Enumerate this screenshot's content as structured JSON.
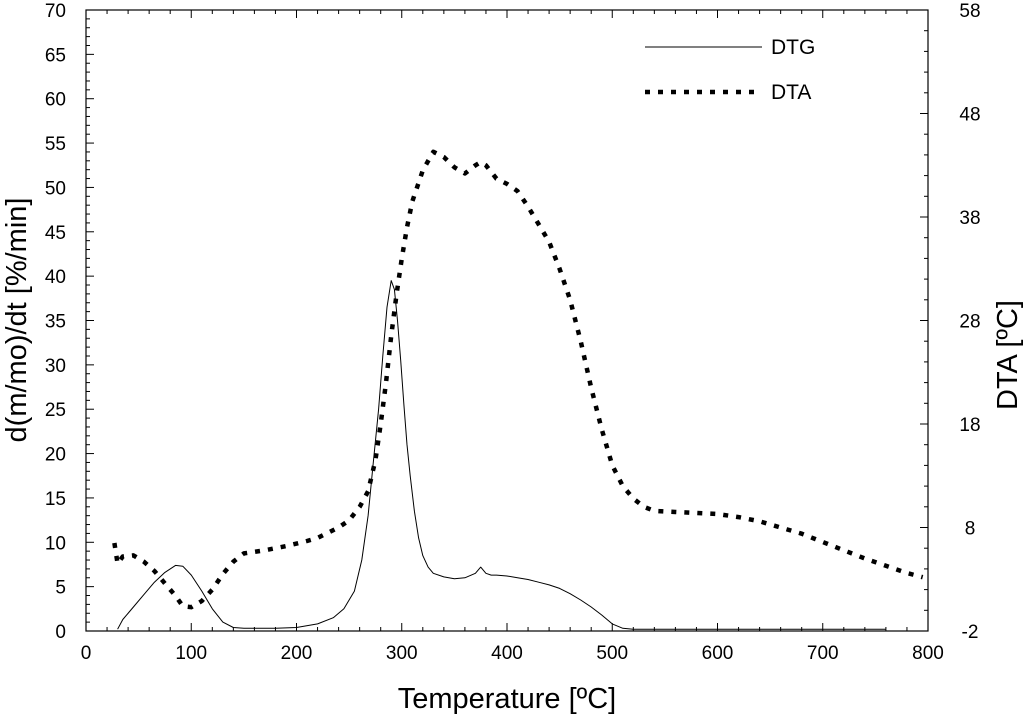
{
  "chart_data": {
    "type": "line",
    "xlabel": "Temperature [ºC]",
    "ylabel": "d(m/mo)/dt [%/min]",
    "y2label": "DTA [ºC]",
    "xlim": [
      0,
      800
    ],
    "ylim": [
      0,
      70
    ],
    "y2lim": [
      -2,
      58
    ],
    "x_ticks": [
      0,
      100,
      200,
      300,
      400,
      500,
      600,
      700,
      800
    ],
    "y_ticks": [
      0,
      5,
      10,
      15,
      20,
      25,
      30,
      35,
      40,
      45,
      50,
      55,
      60,
      65,
      70
    ],
    "y2_ticks": [
      -2,
      8,
      18,
      28,
      38,
      48,
      58
    ],
    "grid": false,
    "legend": "top-right",
    "series": [
      {
        "name": "DTG",
        "axis": "left",
        "style": "solid",
        "color": "#000000",
        "x": [
          30,
          35,
          45,
          55,
          65,
          75,
          85,
          92,
          100,
          110,
          120,
          130,
          140,
          150,
          160,
          180,
          200,
          220,
          235,
          245,
          255,
          262,
          268,
          273,
          278,
          282,
          286,
          290,
          293,
          296,
          299,
          302,
          305,
          308,
          312,
          316,
          320,
          325,
          330,
          340,
          350,
          360,
          370,
          375,
          380,
          385,
          390,
          400,
          410,
          420,
          430,
          440,
          450,
          460,
          470,
          480,
          490,
          500,
          510,
          520,
          540,
          560,
          600,
          650,
          700,
          750,
          760
        ],
        "y": [
          0.2,
          1.3,
          2.7,
          4.1,
          5.5,
          6.6,
          7.4,
          7.3,
          6.3,
          4.5,
          2.5,
          1.0,
          0.4,
          0.3,
          0.3,
          0.3,
          0.4,
          0.8,
          1.5,
          2.5,
          4.5,
          8.0,
          13.0,
          19.0,
          25.0,
          31.0,
          36.5,
          39.5,
          38.5,
          35.0,
          30.5,
          25.5,
          21.0,
          17.5,
          13.5,
          10.5,
          8.5,
          7.2,
          6.5,
          6.1,
          5.9,
          6.0,
          6.5,
          7.2,
          6.5,
          6.3,
          6.3,
          6.2,
          6.0,
          5.8,
          5.5,
          5.2,
          4.8,
          4.2,
          3.5,
          2.7,
          1.8,
          0.8,
          0.3,
          0.2,
          0.2,
          0.2,
          0.2,
          0.2,
          0.2,
          0.2,
          0.2
        ]
      },
      {
        "name": "DTA",
        "axis": "right",
        "style": "dotted",
        "color": "#000000",
        "x": [
          27,
          30,
          35,
          45,
          55,
          65,
          75,
          85,
          92,
          100,
          110,
          120,
          130,
          140,
          150,
          170,
          190,
          210,
          220,
          230,
          240,
          250,
          260,
          268,
          275,
          280,
          285,
          290,
          295,
          300,
          305,
          310,
          320,
          330,
          340,
          350,
          360,
          370,
          375,
          380,
          390,
          400,
          410,
          420,
          430,
          440,
          450,
          460,
          470,
          480,
          490,
          500,
          510,
          520,
          530,
          540,
          560,
          580,
          600,
          620,
          640,
          660,
          680,
          700,
          720,
          740,
          760,
          780,
          795
        ],
        "y": [
          6.5,
          4.5,
          5.2,
          5.3,
          4.7,
          3.8,
          2.6,
          1.4,
          0.4,
          0.3,
          0.9,
          2.0,
          3.5,
          4.7,
          5.5,
          5.8,
          6.2,
          6.7,
          7.0,
          7.5,
          8.0,
          8.7,
          10.0,
          11.5,
          14.5,
          18.0,
          22.0,
          26.5,
          30.5,
          34.0,
          37.0,
          39.5,
          42.5,
          44.3,
          43.8,
          42.8,
          42.2,
          43.0,
          43.3,
          43.0,
          41.7,
          41.2,
          40.5,
          39.0,
          37.3,
          35.6,
          33.0,
          30.0,
          26.0,
          21.5,
          17.5,
          14.0,
          12.0,
          10.8,
          10.0,
          9.6,
          9.5,
          9.4,
          9.3,
          9.0,
          8.6,
          8.0,
          7.4,
          6.6,
          5.8,
          5.0,
          4.3,
          3.6,
          3.2
        ]
      }
    ]
  }
}
